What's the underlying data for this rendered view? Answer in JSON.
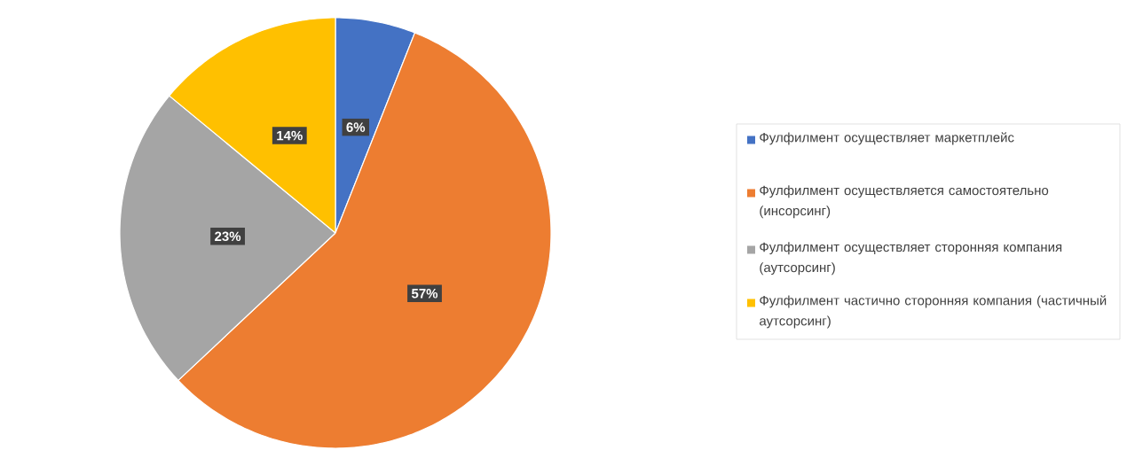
{
  "chart_data": {
    "type": "pie",
    "categories": [
      "Фулфилмент осуществляет маркетплейс",
      "Фулфилмент осуществляется самостоятельно (инсорсинг)",
      "Фулфилмент осуществляет сторонняя компания (аутсорсинг)",
      "Фулфилмент частично сторонняя компания (частичный аутсорсинг)"
    ],
    "values": [
      6,
      57,
      23,
      14
    ],
    "colors": [
      "#4472c4",
      "#ed7d31",
      "#a5a5a5",
      "#ffc000"
    ],
    "value_labels": [
      "6%",
      "57%",
      "23%",
      "14%"
    ],
    "legend": "right"
  }
}
